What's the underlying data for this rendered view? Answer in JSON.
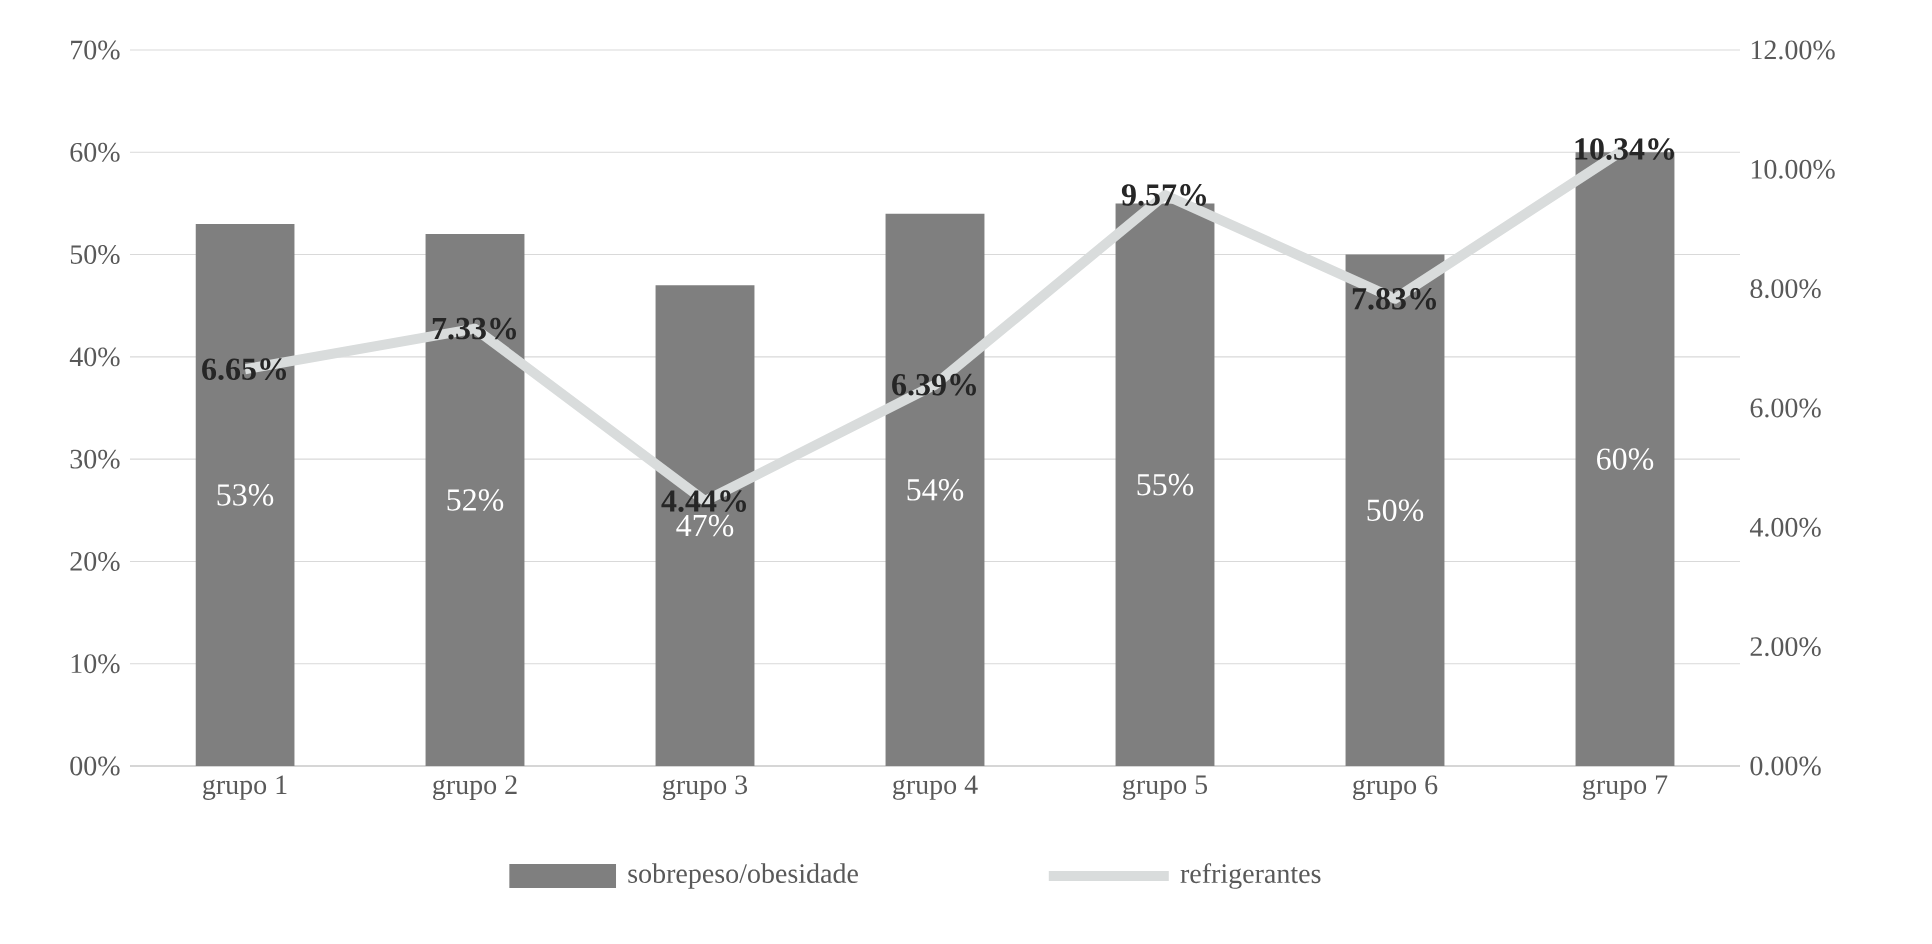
{
  "chart_data": {
    "type": "bar",
    "categories": [
      "grupo 1",
      "grupo 2",
      "grupo 3",
      "grupo 4",
      "grupo 5",
      "grupo 6",
      "grupo 7"
    ],
    "series": [
      {
        "name": "sobrepeso/obesidade",
        "type": "bar",
        "color": "#7f7f7f",
        "values": [
          53,
          52,
          47,
          54,
          55,
          50,
          60
        ],
        "value_labels": [
          "53%",
          "52%",
          "47%",
          "54%",
          "55%",
          "50%",
          "60%"
        ]
      },
      {
        "name": "refrigerantes",
        "type": "line",
        "axis": "y2",
        "color": "#d9dcdc",
        "values": [
          6.65,
          7.33,
          4.44,
          6.39,
          9.57,
          7.83,
          10.34
        ],
        "value_labels": [
          "6.65%",
          "7.33%",
          "4.44%",
          "6.39%",
          "9.57%",
          "7.83%",
          "10.34%"
        ]
      }
    ],
    "ylim": [
      0,
      70
    ],
    "yticks": [
      {
        "value": 0,
        "label": "00%"
      },
      {
        "value": 10,
        "label": "10%"
      },
      {
        "value": 20,
        "label": "20%"
      },
      {
        "value": 30,
        "label": "30%"
      },
      {
        "value": 40,
        "label": "40%"
      },
      {
        "value": 50,
        "label": "50%"
      },
      {
        "value": 60,
        "label": "60%"
      },
      {
        "value": 70,
        "label": "70%"
      }
    ],
    "y2lim": [
      0,
      12
    ],
    "y2ticks": [
      {
        "value": 0,
        "label": "0.00%"
      },
      {
        "value": 2,
        "label": "2.00%"
      },
      {
        "value": 4,
        "label": "4.00%"
      },
      {
        "value": 6,
        "label": "6.00%"
      },
      {
        "value": 8,
        "label": "8.00%"
      },
      {
        "value": 10,
        "label": "10.00%"
      },
      {
        "value": 12,
        "label": "12.00%"
      }
    ],
    "grid": "y",
    "legend": "bottom"
  }
}
